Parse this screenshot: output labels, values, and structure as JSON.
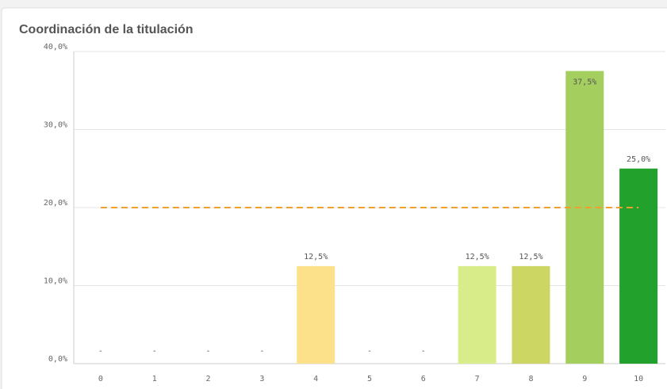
{
  "chart_data": {
    "type": "bar",
    "title": "Coordinación de la titulación",
    "categories": [
      "0",
      "1",
      "2",
      "3",
      "4",
      "5",
      "6",
      "7",
      "8",
      "9",
      "10"
    ],
    "values": [
      0,
      0,
      0,
      0,
      12.5,
      0,
      0,
      12.5,
      12.5,
      37.5,
      25
    ],
    "value_labels": [
      "-",
      "-",
      "-",
      "-",
      "12,5%",
      "-",
      "-",
      "12,5%",
      "12,5%",
      "37,5%",
      "25,0%"
    ],
    "colors": [
      "#e8593a",
      "#ee7a45",
      "#f39b55",
      "#f8bd6c",
      "#fde08a",
      "#f6ee98",
      "#e8f294",
      "#d9ec8a",
      "#ccd663",
      "#a4cf5e",
      "#22a12d"
    ],
    "ylim": [
      0,
      40
    ],
    "yticks": [
      {
        "value": 0,
        "label": "0,0%"
      },
      {
        "value": 10,
        "label": "10,0%"
      },
      {
        "value": 20,
        "label": "20,0%"
      },
      {
        "value": 30,
        "label": "30,0%"
      },
      {
        "value": 40,
        "label": "40,0%"
      }
    ],
    "grid": true,
    "reference_line": {
      "value": 20,
      "color": "#f0a030"
    }
  }
}
